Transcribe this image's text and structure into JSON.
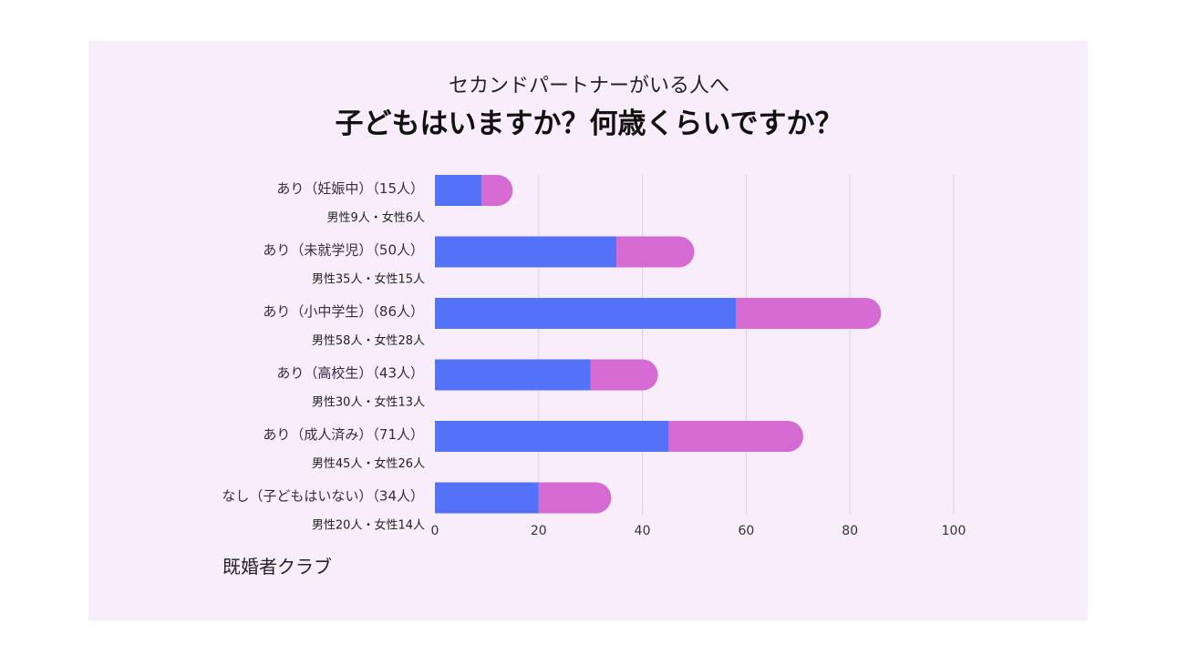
{
  "header": {
    "subtitle": "セカンドパートナーがいる人へ",
    "title": "子どもはいますか？何歳くらいですか？"
  },
  "source": "既婚者クラブ",
  "colors": {
    "male": "#5372f7",
    "female": "#d66ad3",
    "background": "#f8eefb",
    "grid": "#ddd0e2"
  },
  "chart_data": {
    "type": "bar",
    "orientation": "horizontal",
    "stacked": true,
    "categories": [
      "あり（妊娠中）（15人）",
      "あり（未就学児）（50人）",
      "あり（小中学生）（86人）",
      "あり（高校生）（43人）",
      "あり（成人済み）（71人）",
      "なし（子どもはいない）（34人）"
    ],
    "category_breakdown": [
      "男性9人・女性6人",
      "男性35人・女性15人",
      "男性58人・女性28人",
      "男性30人・女性13人",
      "男性45人・女性26人",
      "男性20人・女性14人"
    ],
    "series": [
      {
        "values": [
          9,
          35,
          58,
          30,
          45,
          20
        ]
      },
      {
        "values": [
          6,
          15,
          28,
          13,
          26,
          14
        ]
      }
    ],
    "xlim": [
      0,
      100
    ],
    "xticks": [
      "0",
      "20",
      "40",
      "60",
      "80",
      "100"
    ],
    "grid": "vertical"
  }
}
